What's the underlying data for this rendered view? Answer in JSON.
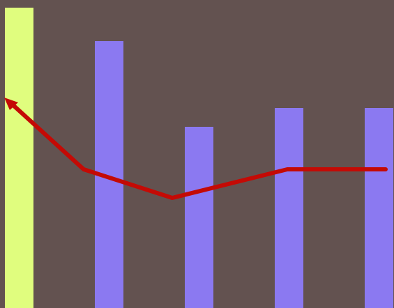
{
  "colors": {
    "background": "#635250",
    "highlighted_bar": "#e0fd7e",
    "bar": "#8b79f1",
    "path": "#c40a05"
  },
  "bars": [
    {
      "id": "bar-1",
      "state": "highlighted",
      "level": 0.975
    },
    {
      "id": "bar-2",
      "state": "normal",
      "level": 0.867
    },
    {
      "id": "bar-3",
      "state": "normal",
      "level": 0.588
    },
    {
      "id": "bar-4",
      "state": "normal",
      "level": 0.649
    },
    {
      "id": "bar-5",
      "state": "normal",
      "level": 0.649
    }
  ],
  "path": {
    "arrow_direction": "toward-bar-1"
  }
}
